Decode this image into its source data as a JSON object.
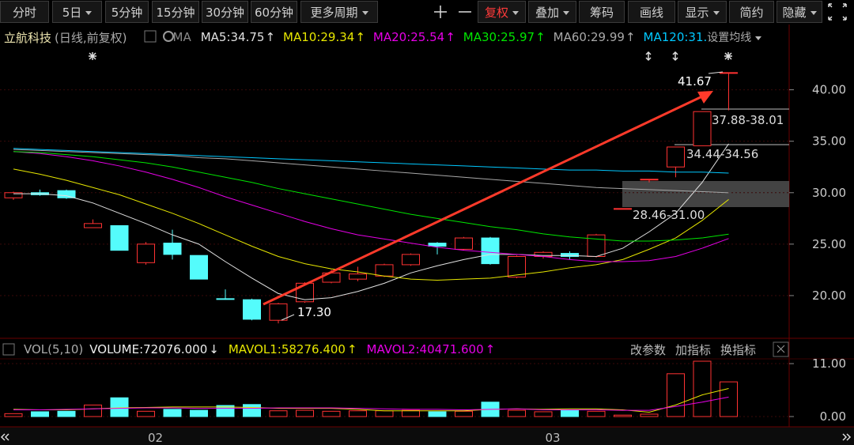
{
  "toolbar": {
    "periods": [
      "分时",
      "5日",
      "5分钟",
      "15分钟",
      "30分钟",
      "60分钟",
      "更多周期"
    ],
    "tools": [
      "复权",
      "叠加",
      "筹码",
      "画线",
      "显示",
      "简约",
      "隐藏"
    ]
  },
  "chart_data": [
    {
      "type": "candlestick",
      "stock_name": "立航科技",
      "period_label": "(日线,前复权)",
      "ma_label": "MA",
      "ma_settings": "设置均线",
      "categories": [
        null,
        null,
        null,
        null,
        null,
        "02",
        null,
        null,
        null,
        null,
        null,
        null,
        null,
        null,
        null,
        null,
        null,
        null,
        null,
        null,
        "03",
        null,
        null,
        null,
        null,
        null,
        null,
        null
      ],
      "open": [
        29.5,
        30.0,
        30.2,
        26.6,
        26.8,
        23.2,
        25.1,
        23.9,
        19.7,
        19.6,
        17.6,
        19.4,
        21.3,
        21.6,
        21.9,
        23.0,
        25.1,
        24.5,
        25.6,
        21.8,
        23.8,
        24.1,
        23.8,
        28.46,
        31.31,
        32.5,
        34.56,
        41.67
      ],
      "high": [
        30.1,
        30.3,
        30.3,
        27.4,
        26.8,
        25.2,
        26.4,
        23.9,
        20.6,
        19.7,
        19.3,
        21.3,
        22.5,
        22.8,
        23.1,
        24.1,
        25.2,
        25.7,
        25.7,
        23.9,
        24.3,
        24.3,
        26.0,
        28.46,
        31.31,
        34.44,
        37.88,
        41.67
      ],
      "low": [
        29.3,
        29.7,
        29.4,
        26.6,
        24.4,
        23.0,
        23.5,
        21.6,
        19.6,
        17.6,
        17.3,
        19.3,
        21.2,
        21.4,
        21.8,
        22.9,
        24.0,
        24.4,
        23.0,
        21.7,
        23.6,
        23.5,
        23.7,
        28.46,
        31.0,
        31.5,
        34.56,
        38.01
      ],
      "close": [
        30.0,
        29.8,
        29.5,
        27.0,
        24.4,
        25.0,
        24.0,
        21.6,
        19.7,
        17.7,
        19.2,
        21.2,
        22.2,
        22.1,
        23.0,
        24.0,
        24.8,
        25.6,
        23.1,
        23.8,
        24.2,
        23.8,
        25.9,
        28.46,
        31.31,
        34.44,
        37.88,
        41.67
      ],
      "up_color": "#ff3232",
      "down_color": "#54fcfc",
      "series": [
        {
          "name": "MA5:34.75",
          "trend": "↑",
          "color": "#e0e0e0",
          "values": [
            29.9,
            29.9,
            29.7,
            29.0,
            28.0,
            27.0,
            25.9,
            25.0,
            23.3,
            21.7,
            20.2,
            19.6,
            19.8,
            20.4,
            21.2,
            22.2,
            22.9,
            23.5,
            24.0,
            24.0,
            23.9,
            23.9,
            23.8,
            24.6,
            26.2,
            28.0,
            31.0,
            34.75
          ]
        },
        {
          "name": "MA10:29.34",
          "trend": "↑",
          "color": "#e6e600",
          "values": [
            32.3,
            31.8,
            31.2,
            30.5,
            29.8,
            28.9,
            28.0,
            27.0,
            25.9,
            24.8,
            23.8,
            23.1,
            22.6,
            22.3,
            21.9,
            21.6,
            21.5,
            21.6,
            21.7,
            22.0,
            22.3,
            22.7,
            23.0,
            23.5,
            24.5,
            25.6,
            27.3,
            29.34
          ]
        },
        {
          "name": "MA20:25.54",
          "trend": "↑",
          "color": "#e600e6",
          "values": [
            34.0,
            33.8,
            33.5,
            33.1,
            32.6,
            32.0,
            31.3,
            30.5,
            29.6,
            28.8,
            28.0,
            27.2,
            26.5,
            25.9,
            25.5,
            25.1,
            24.7,
            24.4,
            24.2,
            24.0,
            23.8,
            23.5,
            23.3,
            23.3,
            23.4,
            23.8,
            24.6,
            25.54
          ]
        },
        {
          "name": "MA30:25.97",
          "trend": "↑",
          "color": "#00e600",
          "values": [
            34.0,
            33.9,
            33.7,
            33.5,
            33.2,
            32.9,
            32.5,
            32.0,
            31.5,
            31.0,
            30.4,
            29.9,
            29.4,
            28.9,
            28.4,
            27.9,
            27.5,
            27.1,
            26.7,
            26.4,
            26.0,
            25.7,
            25.5,
            25.3,
            25.3,
            25.4,
            25.6,
            25.97
          ]
        },
        {
          "name": "MA60:29.99",
          "trend": "↑",
          "color": "#a8a8a8",
          "values": [
            34.2,
            34.1,
            34.0,
            33.9,
            33.8,
            33.7,
            33.6,
            33.4,
            33.3,
            33.1,
            32.9,
            32.7,
            32.5,
            32.3,
            32.1,
            31.9,
            31.7,
            31.5,
            31.3,
            31.1,
            30.9,
            30.7,
            30.5,
            30.4,
            30.3,
            30.2,
            30.1,
            29.99
          ]
        },
        {
          "name": "MA120:31.",
          "trend": null,
          "color": "#00c8ff",
          "values": [
            34.3,
            34.2,
            34.1,
            34.0,
            33.9,
            33.8,
            33.7,
            33.6,
            33.5,
            33.4,
            33.3,
            33.2,
            33.1,
            33.0,
            32.9,
            32.8,
            32.7,
            32.6,
            32.5,
            32.4,
            32.3,
            32.2,
            32.2,
            32.1,
            32.1,
            32.0,
            32.0,
            31.9
          ]
        }
      ],
      "ylim": [
        16.08,
        46.19
      ],
      "yticks": [
        {
          "value": 20,
          "label": "20.00"
        },
        {
          "value": 25,
          "label": "25.00"
        },
        {
          "value": 30,
          "label": "30.00"
        },
        {
          "value": 35,
          "label": "35.00"
        },
        {
          "value": 40,
          "label": "40.00"
        }
      ],
      "annotations": [
        "41.67",
        "37.88-38.01",
        "34.44-34.56",
        "28.46-31.00",
        "17.30"
      ]
    },
    {
      "type": "bar",
      "title": "VOL(5,10)",
      "volume_label": "VOLUME:72076.000",
      "volume_trend": "↓",
      "values": [
        0.6,
        1.0,
        1.1,
        2.4,
        3.9,
        1.1,
        1.5,
        1.3,
        2.3,
        2.5,
        1.2,
        1.3,
        1.1,
        1.2,
        1.2,
        1.3,
        1.0,
        1.1,
        3.0,
        1.3,
        1.0,
        1.4,
        1.1,
        0.3,
        0.5,
        8.9,
        11.5,
        7.21
      ],
      "series": [
        {
          "name": "MAVOL1:58276.400",
          "trend": "↑",
          "color": "#e6e600",
          "values": [
            1.5,
            1.4,
            1.4,
            1.6,
            1.8,
            1.9,
            2.0,
            2.0,
            2.0,
            1.9,
            1.7,
            1.7,
            1.7,
            1.5,
            1.2,
            1.2,
            1.2,
            1.2,
            1.5,
            1.6,
            1.5,
            1.6,
            1.6,
            1.4,
            0.9,
            2.4,
            4.5,
            5.83
          ]
        },
        {
          "name": "MAVOL2:40471.600",
          "trend": "↑",
          "color": "#e600e6",
          "values": [
            1.4,
            1.4,
            1.5,
            1.6,
            1.7,
            1.8,
            1.8,
            1.7,
            1.7,
            1.7,
            1.8,
            1.8,
            1.8,
            1.7,
            1.6,
            1.5,
            1.5,
            1.4,
            1.5,
            1.6,
            1.4,
            1.4,
            1.4,
            1.3,
            1.3,
            2.1,
            3.0,
            4.05
          ]
        }
      ],
      "ylim": [
        -1.64,
        12.32
      ],
      "yticks": [
        {
          "value": 11,
          "label": "11.00"
        },
        {
          "value": 0,
          "label": "0.00"
        }
      ],
      "actions": [
        "改参数",
        "加指标",
        "换指标"
      ]
    }
  ]
}
